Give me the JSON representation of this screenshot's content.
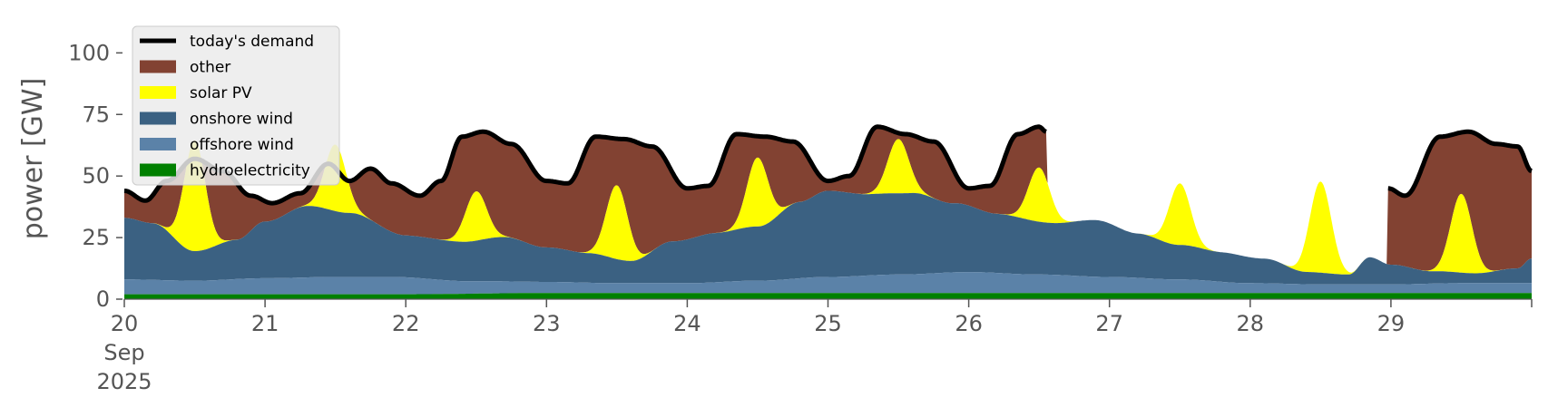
{
  "chart_data": {
    "type": "area",
    "title": "",
    "xlabel": "",
    "ylabel": "power [GW]",
    "ylim": [
      0,
      120
    ],
    "yticks": [
      0,
      25,
      50,
      75,
      100
    ],
    "x_range_days": [
      "20 Sep 2025",
      "30 Sep 2025"
    ],
    "x_tick_labels": [
      {
        "day": "20",
        "month": "Sep",
        "year": "2025"
      },
      {
        "day": "21"
      },
      {
        "day": "22"
      },
      {
        "day": "23"
      },
      {
        "day": "24"
      },
      {
        "day": "25"
      },
      {
        "day": "26"
      },
      {
        "day": "27"
      },
      {
        "day": "28"
      },
      {
        "day": "29"
      }
    ],
    "grid": false,
    "legend_position": "top-left",
    "stack_order": [
      "hydroelectricity",
      "offshore wind",
      "onshore wind",
      "solar PV",
      "other"
    ],
    "colors": {
      "today's demand": "#000000",
      "other": "#824232",
      "solar PV": "#ffff00",
      "onshore wind": "#3b6182",
      "offshore wind": "#5b82a8",
      "hydroelectricity": "#008000"
    },
    "legend": [
      "today's demand",
      "other",
      "solar PV",
      "onshore wind",
      "offshore wind",
      "hydroelectricity"
    ],
    "series": [
      {
        "name": "hydroelectricity",
        "unit": "GW",
        "x_day": [
          20,
          22,
          23,
          30
        ],
        "values": [
          2,
          2,
          2.5,
          2.5
        ]
      },
      {
        "name": "offshore wind",
        "unit": "GW",
        "x_day": [
          20,
          20.5,
          21,
          21.5,
          21.9,
          22.5,
          23,
          23.5,
          24,
          24.5,
          25,
          25.5,
          26,
          26.5,
          27,
          27.5,
          28,
          28.5,
          29,
          29.5,
          30
        ],
        "values": [
          6,
          5.5,
          6.5,
          7,
          7,
          5,
          4.5,
          4,
          4,
          5,
          6.5,
          7.5,
          8.5,
          7.5,
          6.5,
          5.5,
          4,
          3.5,
          3.5,
          4,
          4
        ]
      },
      {
        "name": "onshore wind",
        "unit": "GW",
        "x_day": [
          20,
          20.2,
          20.5,
          20.8,
          21,
          21.3,
          21.6,
          22,
          22.4,
          22.7,
          23,
          23.3,
          23.6,
          23.9,
          24.2,
          24.5,
          24.8,
          25,
          25.3,
          25.6,
          25.9,
          26.2,
          26.6,
          26.9,
          27.2,
          27.5,
          27.8,
          28.1,
          28.4,
          28.7,
          28.85,
          29,
          29.3,
          29.6,
          29.9,
          30
        ],
        "values": [
          25,
          23,
          12,
          16,
          23,
          29,
          26,
          17,
          16,
          18,
          14,
          12,
          9,
          17,
          20,
          22,
          31,
          35,
          33,
          33,
          28,
          24,
          21,
          23,
          18,
          14,
          12,
          10,
          5,
          4,
          11,
          8,
          5,
          4,
          6,
          10
        ]
      },
      {
        "name": "solar PV",
        "unit": "GW",
        "x_day": [
          20.5,
          21.5,
          22.5,
          23.5,
          24.5,
          25.5,
          26.5,
          27.5,
          28.5,
          29.5
        ],
        "values": [
          45,
          27,
          20,
          30,
          28,
          22,
          22,
          25,
          37,
          32
        ]
      },
      {
        "name": "today's demand",
        "unit": "GW",
        "x_day": [
          20,
          20.15,
          20.3,
          20.5,
          20.7,
          20.9,
          21.05,
          21.25,
          21.45,
          21.6,
          21.75,
          21.9,
          22.1,
          22.25,
          22.4,
          22.55,
          22.75,
          23,
          23.15,
          23.35,
          23.55,
          23.75,
          24,
          24.15,
          24.35,
          24.55,
          24.75,
          25,
          25.15,
          25.35,
          25.55,
          25.75,
          26,
          26.15,
          26.35,
          26.5,
          26.55,
          28.98,
          29.1,
          29.35,
          29.55,
          29.75,
          29.9,
          30
        ],
        "values": [
          44,
          40,
          48,
          57,
          52,
          42,
          39,
          43,
          55,
          48,
          53,
          47,
          42,
          48,
          66,
          68,
          63,
          48,
          47,
          66,
          65,
          62,
          45,
          46,
          67,
          66,
          64,
          48,
          50,
          70,
          67,
          64,
          45,
          46,
          67,
          70,
          68,
          45,
          42,
          66,
          68,
          63,
          62,
          52
        ]
      }
    ]
  }
}
